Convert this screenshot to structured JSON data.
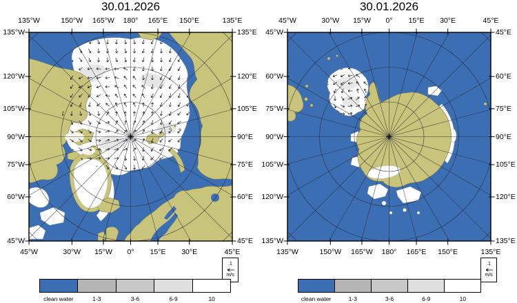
{
  "maps": [
    {
      "region": "arctic",
      "title": "30.01.2026",
      "axis": {
        "top": [
          "135°W",
          "150°W",
          "165°W",
          "180°",
          "165°E",
          "150°E",
          "135°E"
        ],
        "bottom": [
          "45°W",
          "30°W",
          "15°W",
          "0°",
          "15°E",
          "30°E",
          "45°E"
        ],
        "left": [
          "135°W",
          "120°W",
          "105°W",
          "90°W",
          "75°W",
          "60°W",
          "45°W"
        ],
        "right": [
          "135°E",
          "120°E",
          "105°E",
          "90°E",
          "75°E",
          "60°E",
          "45°E"
        ]
      },
      "vector_scale": {
        "value": ".1",
        "unit": "m/s"
      }
    },
    {
      "region": "antarctic",
      "title": "30.01.2026",
      "axis": {
        "top": [
          "45°W",
          "30°W",
          "15°W",
          "0°",
          "15°E",
          "30°E",
          "45°E"
        ],
        "bottom": [
          "135°W",
          "150°W",
          "165°W",
          "180°",
          "165°E",
          "150°E",
          "135°E"
        ],
        "left": [
          "45°W",
          "60°W",
          "75°W",
          "90°W",
          "105°W",
          "120°W",
          "135°W"
        ],
        "right": [
          "45°E",
          "60°E",
          "75°E",
          "90°E",
          "105°E",
          "120°E",
          "135°E"
        ]
      },
      "vector_scale": {
        "value": ".1",
        "unit": "m/s"
      }
    }
  ],
  "legend": {
    "segments": [
      {
        "label": "clean water",
        "color": "#3c6eb4"
      },
      {
        "label": "1-3",
        "color": "#b5b5b5"
      },
      {
        "label": "3-6",
        "color": "#c8c8c8"
      },
      {
        "label": "6-9",
        "color": "#dfdfdf"
      },
      {
        "label": "10",
        "color": "#ffffff"
      }
    ]
  },
  "colors": {
    "ocean": "#3c6eb4",
    "land": "#c8c47c",
    "ice": "#ffffff",
    "ice_shade": "#d6d6d6",
    "graticule": "#23252d",
    "frame": "#000000",
    "arrow": "#15151a"
  }
}
